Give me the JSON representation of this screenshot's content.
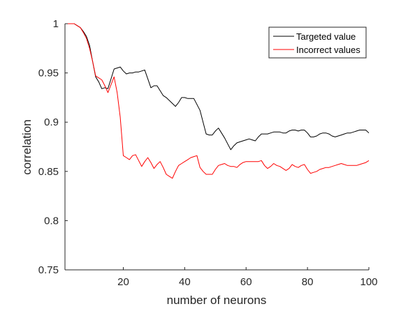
{
  "chart_data": {
    "type": "line",
    "xlabel": "number of neurons",
    "ylabel": "correlation",
    "xlim": [
      1,
      100
    ],
    "ylim": [
      0.75,
      1
    ],
    "xticks": [
      20,
      40,
      60,
      80,
      100
    ],
    "xtick_labels": [
      "20",
      "40",
      "60",
      "80",
      "100"
    ],
    "yticks": [
      0.75,
      0.8,
      0.85,
      0.9,
      0.95,
      1
    ],
    "ytick_labels": [
      "0.75",
      "0.8",
      "0.85",
      "0.9",
      "0.95",
      "1"
    ],
    "grid": false,
    "legend_position": "top-right",
    "x": [
      1,
      2,
      3,
      4,
      5,
      6,
      7,
      8,
      9,
      10,
      11,
      12,
      13,
      14,
      15,
      16,
      17,
      18,
      19,
      20,
      21,
      22,
      23,
      24,
      25,
      26,
      27,
      28,
      29,
      30,
      31,
      32,
      33,
      34,
      35,
      36,
      37,
      38,
      39,
      40,
      41,
      42,
      43,
      44,
      45,
      46,
      47,
      48,
      49,
      50,
      51,
      52,
      53,
      54,
      55,
      56,
      57,
      58,
      59,
      60,
      61,
      62,
      63,
      64,
      65,
      66,
      67,
      68,
      69,
      70,
      71,
      72,
      73,
      74,
      75,
      76,
      77,
      78,
      79,
      80,
      81,
      82,
      83,
      84,
      85,
      86,
      87,
      88,
      89,
      90,
      91,
      92,
      93,
      94,
      95,
      96,
      97,
      98,
      99,
      100
    ],
    "series": [
      {
        "name": "Targeted value",
        "color": "#000000",
        "values": [
          1.0,
          1.0,
          1.0,
          1.0,
          0.998,
          0.996,
          0.992,
          0.987,
          0.978,
          0.962,
          0.946,
          0.941,
          0.934,
          0.935,
          0.934,
          0.944,
          0.954,
          0.955,
          0.956,
          0.952,
          0.949,
          0.95,
          0.95,
          0.951,
          0.951,
          0.952,
          0.953,
          0.944,
          0.935,
          0.937,
          0.937,
          0.932,
          0.927,
          0.925,
          0.922,
          0.919,
          0.916,
          0.92,
          0.925,
          0.925,
          0.924,
          0.924,
          0.924,
          0.918,
          0.912,
          0.9,
          0.888,
          0.887,
          0.887,
          0.891,
          0.894,
          0.889,
          0.884,
          0.878,
          0.872,
          0.876,
          0.879,
          0.88,
          0.881,
          0.882,
          0.883,
          0.882,
          0.881,
          0.885,
          0.888,
          0.888,
          0.888,
          0.889,
          0.89,
          0.89,
          0.89,
          0.889,
          0.889,
          0.891,
          0.892,
          0.892,
          0.891,
          0.892,
          0.892,
          0.889,
          0.885,
          0.885,
          0.886,
          0.888,
          0.889,
          0.889,
          0.888,
          0.886,
          0.885,
          0.886,
          0.887,
          0.888,
          0.889,
          0.889,
          0.89,
          0.891,
          0.892,
          0.892,
          0.892,
          0.889
        ]
      },
      {
        "name": "Incorrect values",
        "color": "#ff0000",
        "values": [
          1.0,
          1.0,
          1.0,
          1.0,
          0.998,
          0.996,
          0.991,
          0.985,
          0.975,
          0.962,
          0.947,
          0.945,
          0.943,
          0.937,
          0.93,
          0.938,
          0.946,
          0.93,
          0.905,
          0.866,
          0.864,
          0.862,
          0.866,
          0.867,
          0.861,
          0.855,
          0.86,
          0.864,
          0.859,
          0.853,
          0.857,
          0.86,
          0.854,
          0.847,
          0.845,
          0.843,
          0.85,
          0.856,
          0.858,
          0.86,
          0.862,
          0.864,
          0.865,
          0.866,
          0.854,
          0.85,
          0.847,
          0.847,
          0.847,
          0.852,
          0.856,
          0.857,
          0.858,
          0.856,
          0.855,
          0.855,
          0.854,
          0.857,
          0.859,
          0.86,
          0.86,
          0.86,
          0.86,
          0.86,
          0.861,
          0.856,
          0.853,
          0.855,
          0.858,
          0.856,
          0.855,
          0.853,
          0.851,
          0.853,
          0.857,
          0.855,
          0.854,
          0.856,
          0.857,
          0.852,
          0.848,
          0.849,
          0.85,
          0.852,
          0.853,
          0.854,
          0.854,
          0.855,
          0.856,
          0.857,
          0.858,
          0.857,
          0.856,
          0.856,
          0.856,
          0.856,
          0.857,
          0.858,
          0.859,
          0.861
        ]
      }
    ]
  }
}
